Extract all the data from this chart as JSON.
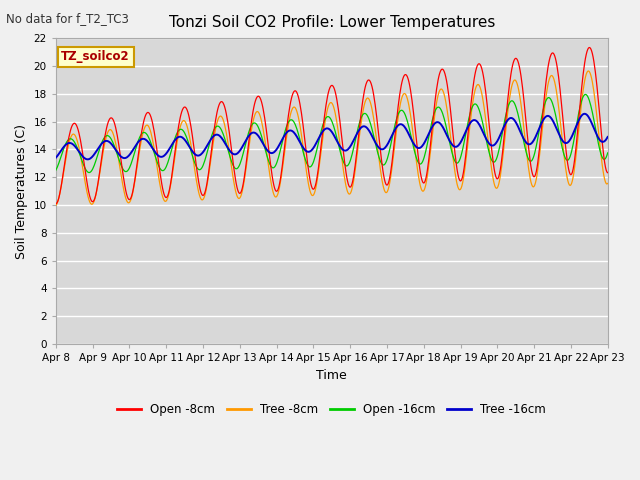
{
  "title": "Tonzi Soil CO2 Profile: Lower Temperatures",
  "no_data_text": "No data for f_T2_TC3",
  "xlabel": "Time",
  "ylabel": "Soil Temperatures (C)",
  "ylim": [
    0,
    22
  ],
  "yticks": [
    0,
    2,
    4,
    6,
    8,
    10,
    12,
    14,
    16,
    18,
    20,
    22
  ],
  "x_labels": [
    "Apr 8",
    "Apr 9",
    "Apr 10",
    "Apr 11",
    "Apr 12",
    "Apr 13",
    "Apr 14",
    "Apr 15",
    "Apr 16",
    "Apr 17",
    "Apr 18",
    "Apr 19",
    "Apr 20",
    "Apr 21",
    "Apr 22",
    "Apr 23"
  ],
  "background_color": "#f0f0f0",
  "plot_bg_color": "#d8d8d8",
  "grid_color": "#ffffff",
  "colors": {
    "open_8cm": "#ff0000",
    "tree_8cm": "#ff9900",
    "open_16cm": "#00cc00",
    "tree_16cm": "#0000cc"
  },
  "legend_box_facecolor": "#ffffcc",
  "legend_box_edgecolor": "#cc9900",
  "legend_text": "TZ_soilco2",
  "series_labels": [
    "Open -8cm",
    "Tree -8cm",
    "Open -16cm",
    "Tree -16cm"
  ]
}
